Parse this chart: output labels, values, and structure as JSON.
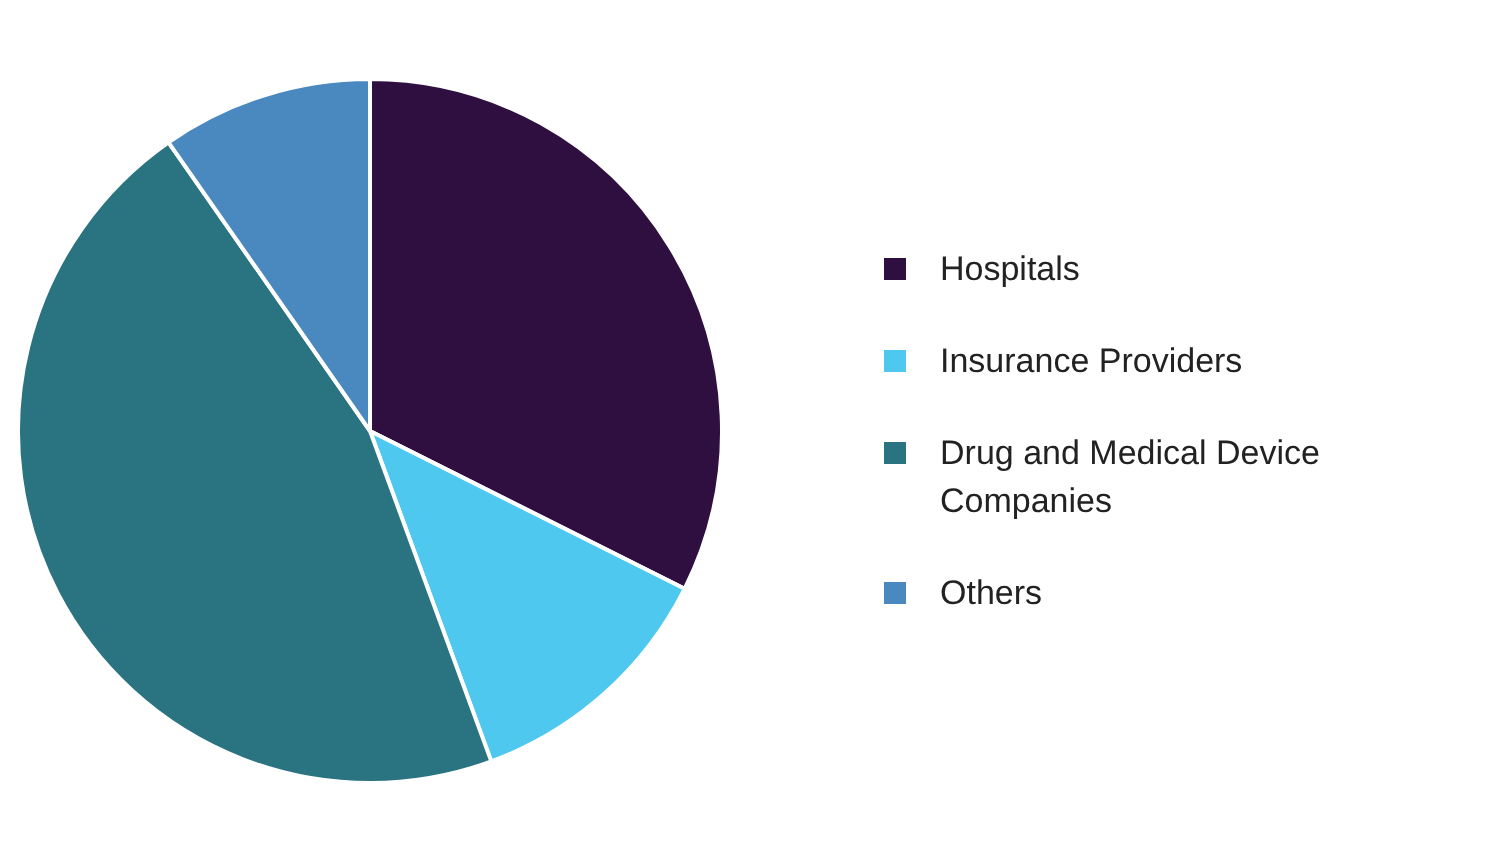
{
  "chart_data": {
    "type": "pie",
    "categories": [
      "Hospitals",
      "Insurance Providers",
      "Drug and Medical Device Companies",
      "Others"
    ],
    "values": [
      32.4,
      12,
      45.9,
      9.7
    ],
    "colors": [
      "#2e0f40",
      "#4fc8f0",
      "#2a7380",
      "#4a88c0"
    ],
    "legend": "right"
  }
}
